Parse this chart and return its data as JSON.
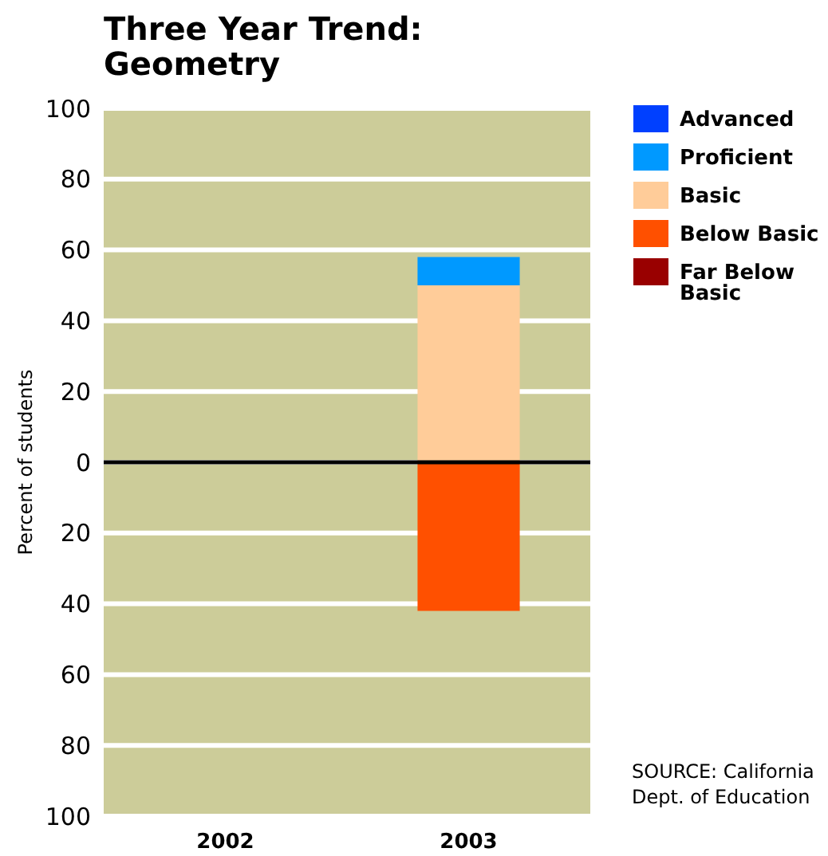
{
  "chart_data": {
    "type": "bar",
    "title": "Three Year Trend: Geometry",
    "ylabel": "Percent of students",
    "categories": [
      "2002",
      "2003"
    ],
    "stacked": true,
    "series": [
      {
        "name": "Basic",
        "color": "#ffcc99",
        "values": [
          null,
          50
        ]
      },
      {
        "name": "Proficient",
        "color": "#0099ff",
        "values": [
          null,
          8
        ]
      },
      {
        "name": "Advanced",
        "color": "#0040ff",
        "values": [
          null,
          0
        ]
      },
      {
        "name": "Below Basic",
        "color": "#ff5000",
        "values": [
          null,
          -42
        ]
      },
      {
        "name": "Far Below Basic",
        "color": "#990000",
        "values": [
          null,
          0
        ]
      }
    ],
    "ylim": [
      -100,
      100
    ],
    "yticks": [
      {
        "value": -100,
        "label": "100"
      },
      {
        "value": -80,
        "label": "80"
      },
      {
        "value": -60,
        "label": "60"
      },
      {
        "value": -40,
        "label": "40"
      },
      {
        "value": -20,
        "label": "20"
      },
      0,
      20,
      40,
      60,
      80,
      100
    ],
    "ref_lines": [
      {
        "axis": "y",
        "value": 0,
        "color": "#000000"
      }
    ],
    "grid": "y",
    "legend": "right",
    "annotations": [
      "SOURCE: California Dept. of Education"
    ]
  }
}
